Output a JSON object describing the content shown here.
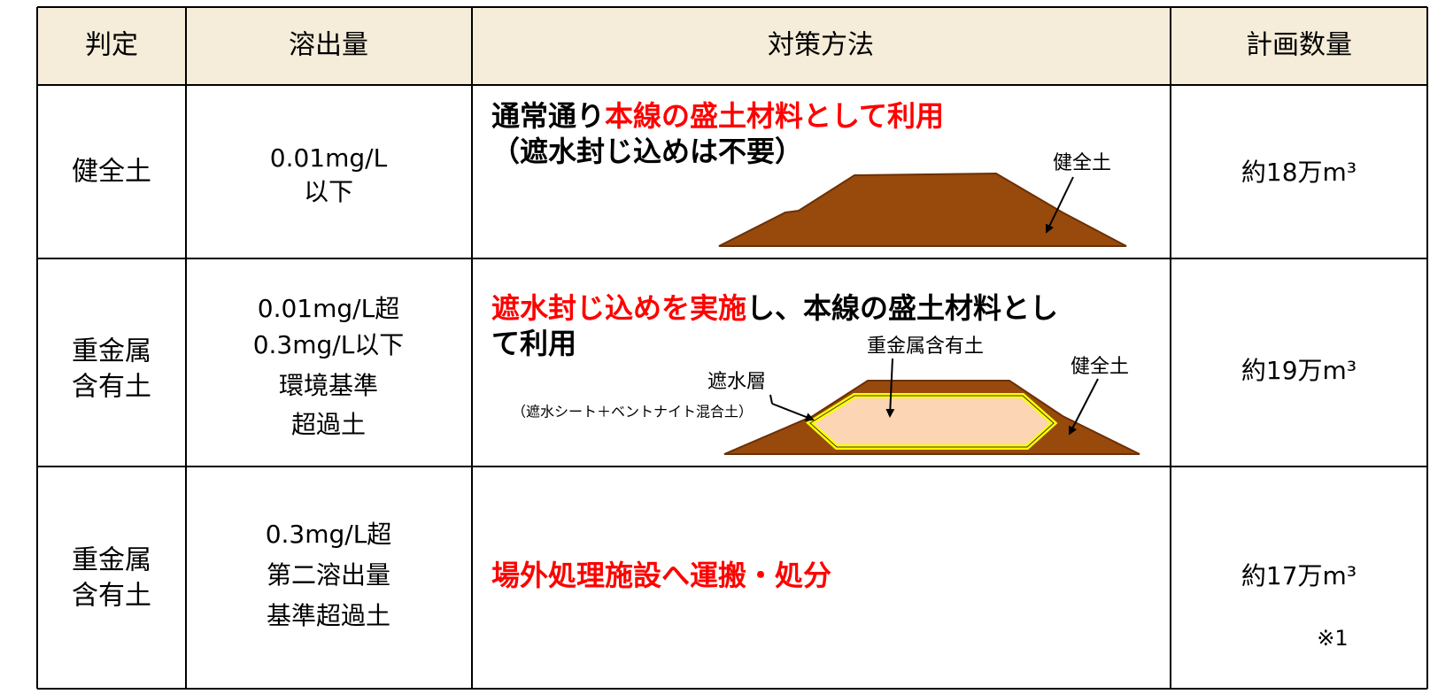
{
  "table": {
    "header": [
      "判定",
      "溶出量",
      "対策方法",
      "計画数量"
    ],
    "rows": [
      {
        "judgement": [
          "健全土"
        ],
        "elution": [
          "0.01mg/L",
          "以下"
        ],
        "method": [
          [
            {
              "text": "通常通り",
              "color": "#000000"
            },
            {
              "text": "本線の盛土材料として利用",
              "color": "#ff0000"
            }
          ],
          [
            {
              "text": "（遮水封じ込めは不要）",
              "color": "#000000"
            }
          ]
        ],
        "diagram": {
          "labels": [
            "健全土"
          ]
        },
        "quantity": "約18万m³"
      },
      {
        "judgement": [
          "重金属",
          "含有土"
        ],
        "elution": [
          "0.01mg/L超",
          "0.3mg/L以下",
          "環境基準",
          "超過土"
        ],
        "method": [
          [
            {
              "text": "遮水封じ込めを実施",
              "color": "#ff0000"
            },
            {
              "text": "し、本線の盛土材料とし",
              "color": "#000000"
            }
          ],
          [
            {
              "text": "て利用",
              "color": "#000000"
            }
          ]
        ],
        "diagram": {
          "labels": [
            "重金属含有土",
            "健全土",
            "遮水層",
            "（遮水シート＋ベントナイト混合土）"
          ]
        },
        "quantity": "約19万m³"
      },
      {
        "judgement": [
          "重金属",
          "含有土"
        ],
        "elution": [
          "0.3mg/L超",
          "第二溶出量",
          "基準超過土"
        ],
        "method": [
          [
            {
              "text": "場外処理施設へ運搬・処分",
              "color": "#ff0000"
            }
          ]
        ],
        "quantity": "約17万m³",
        "note": "※1"
      }
    ]
  }
}
